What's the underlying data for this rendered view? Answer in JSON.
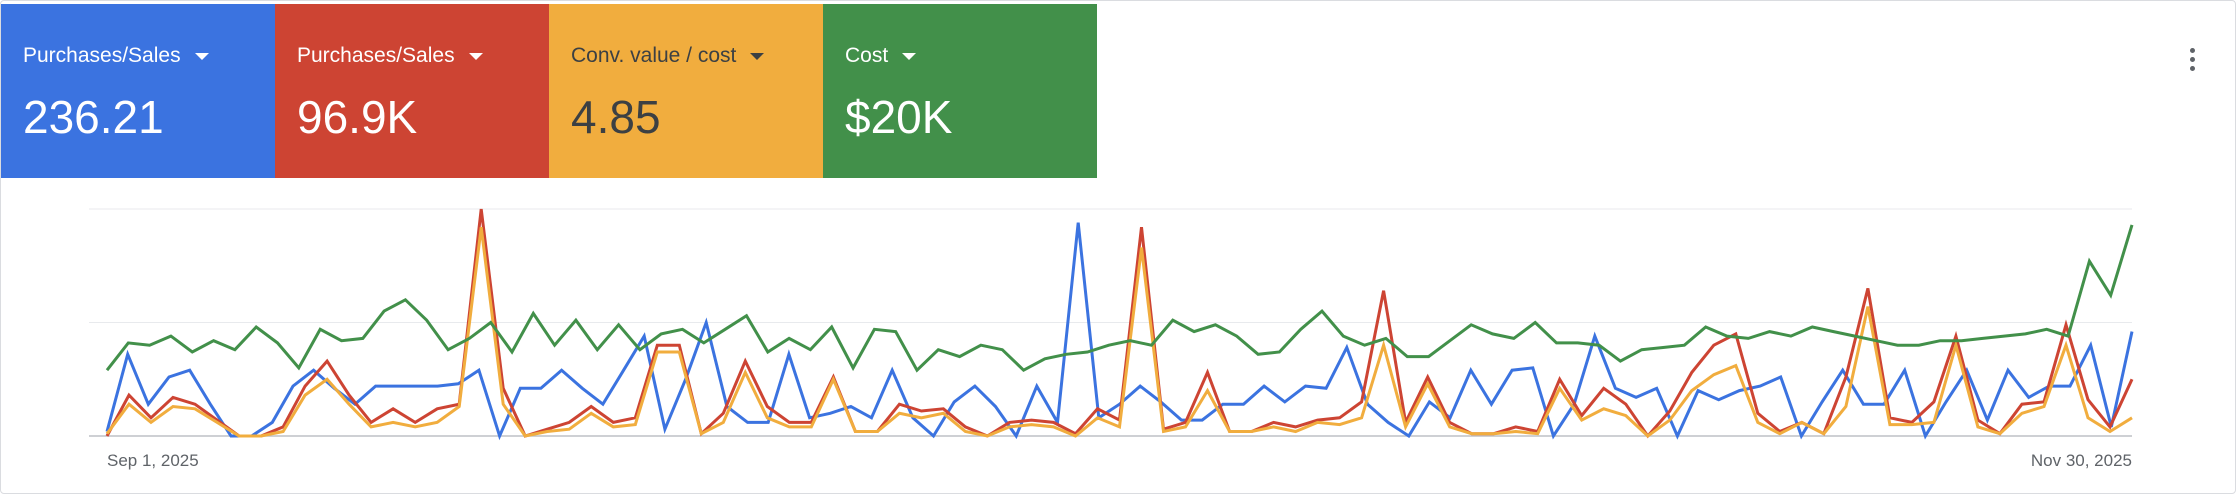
{
  "scorecards": [
    {
      "label": "Purchases/Sales",
      "value": "236.21",
      "color": "#3b73e0",
      "text_color": "#ffffff"
    },
    {
      "label": "Purchases/Sales",
      "value": "96.9K",
      "color": "#cd4433",
      "text_color": "#ffffff"
    },
    {
      "label": "Conv. value / cost",
      "value": "4.85",
      "color": "#f1ad3e",
      "text_color": "#3c4043"
    },
    {
      "label": "Cost",
      "value": "$20K",
      "color": "#42904a",
      "text_color": "#ffffff"
    }
  ],
  "menu": {
    "icon": "more-vert-icon"
  },
  "chart_data": {
    "type": "line",
    "x_start_label": "Sep 1, 2025",
    "x_end_label": "Nov 30, 2025",
    "ylim": [
      0,
      100
    ],
    "grid": true,
    "gridlines": [
      0,
      50,
      100
    ],
    "series": [
      {
        "color": "#3b73e0",
        "values": [
          2,
          36,
          14,
          26,
          29,
          14,
          0,
          0,
          6,
          22,
          29,
          21,
          14,
          22,
          22,
          22,
          22,
          23,
          29,
          0,
          21,
          21,
          29,
          21,
          14,
          29,
          44,
          3,
          25,
          50,
          13,
          6,
          6,
          36,
          8,
          10,
          13,
          8,
          29,
          8,
          0,
          15,
          22,
          13,
          0,
          22,
          6,
          94,
          8,
          14,
          22,
          15,
          7,
          7,
          14,
          14,
          22,
          15,
          22,
          21,
          39,
          14,
          6,
          0,
          15,
          8,
          29,
          14,
          29,
          30,
          0,
          14,
          44,
          21,
          17,
          21,
          0,
          20,
          16,
          20,
          22,
          26,
          0,
          15,
          29,
          14,
          14,
          29,
          0,
          15,
          29,
          7,
          29,
          17,
          22,
          22,
          40,
          4,
          46
        ]
      },
      {
        "color": "#cd4433",
        "values": [
          0,
          18,
          8,
          17,
          14,
          7,
          0,
          0,
          4,
          22,
          33,
          18,
          6,
          12,
          6,
          12,
          14,
          100,
          21,
          0,
          3,
          6,
          13,
          6,
          8,
          40,
          40,
          1,
          10,
          33,
          13,
          6,
          6,
          26,
          2,
          2,
          14,
          11,
          12,
          4,
          0,
          6,
          7,
          6,
          1,
          12,
          7,
          92,
          3,
          6,
          28,
          2,
          2,
          6,
          4,
          7,
          8,
          15,
          64,
          6,
          26,
          6,
          1,
          1,
          4,
          2,
          25,
          9,
          21,
          14,
          0,
          11,
          28,
          40,
          45,
          10,
          2,
          6,
          1,
          26,
          65,
          8,
          6,
          15,
          44,
          7,
          1,
          14,
          15,
          49,
          16,
          4,
          25
        ]
      },
      {
        "color": "#f1ad3e",
        "values": [
          1,
          14,
          6,
          13,
          12,
          6,
          0,
          0,
          2,
          18,
          25,
          14,
          4,
          6,
          4,
          6,
          13,
          92,
          14,
          0,
          2,
          3,
          10,
          4,
          5,
          37,
          37,
          1,
          6,
          28,
          8,
          4,
          4,
          25,
          2,
          2,
          10,
          8,
          10,
          2,
          0,
          4,
          5,
          4,
          0,
          8,
          4,
          83,
          2,
          4,
          20,
          2,
          2,
          4,
          2,
          6,
          5,
          8,
          40,
          4,
          23,
          4,
          1,
          1,
          2,
          1,
          21,
          7,
          12,
          9,
          0,
          7,
          20,
          27,
          31,
          6,
          1,
          6,
          1,
          13,
          57,
          5,
          5,
          6,
          40,
          4,
          1,
          10,
          13,
          40,
          8,
          2,
          8
        ]
      },
      {
        "color": "#42904a",
        "values": [
          29,
          41,
          40,
          44,
          37,
          42,
          38,
          48,
          41,
          30,
          47,
          42,
          43,
          55,
          60,
          51,
          38,
          43,
          50,
          37,
          54,
          40,
          51,
          38,
          49,
          38,
          45,
          47,
          41,
          47,
          53,
          37,
          43,
          38,
          48,
          30,
          47,
          46,
          29,
          38,
          35,
          40,
          38,
          29,
          34,
          36,
          37,
          40,
          42,
          40,
          51,
          46,
          49,
          44,
          36,
          37,
          47,
          55,
          44,
          40,
          43,
          35,
          35,
          42,
          49,
          45,
          43,
          50,
          41,
          41,
          40,
          33,
          38,
          39,
          40,
          48,
          44,
          43,
          46,
          44,
          48,
          46,
          44,
          42,
          40,
          40,
          42,
          42,
          43,
          44,
          45,
          47,
          44,
          77,
          62,
          93
        ]
      }
    ]
  }
}
